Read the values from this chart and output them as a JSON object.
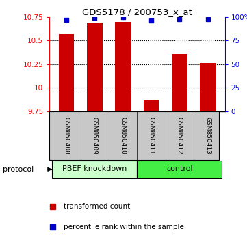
{
  "title": "GDS5178 / 200753_x_at",
  "samples": [
    "GSM850408",
    "GSM850409",
    "GSM850410",
    "GSM850411",
    "GSM850412",
    "GSM850413"
  ],
  "red_values": [
    10.57,
    10.69,
    10.7,
    9.87,
    10.36,
    10.26
  ],
  "blue_values": [
    97,
    99,
    99.5,
    96,
    98,
    98
  ],
  "ylim_left": [
    9.75,
    10.75
  ],
  "ylim_right": [
    0,
    100
  ],
  "yticks_left": [
    9.75,
    10.0,
    10.25,
    10.5,
    10.75
  ],
  "yticks_right": [
    0,
    25,
    50,
    75,
    100
  ],
  "ytick_labels_left": [
    "9.75",
    "10",
    "10.25",
    "10.5",
    "10.75"
  ],
  "ytick_labels_right": [
    "0",
    "25",
    "50",
    "75",
    "100%"
  ],
  "gridlines": [
    10.0,
    10.25,
    10.5
  ],
  "groups": [
    {
      "label": "PBEF knockdown",
      "start": 0,
      "end": 2,
      "color": "#ccffcc"
    },
    {
      "label": "control",
      "start": 3,
      "end": 5,
      "color": "#44ee44"
    }
  ],
  "bar_color": "#cc0000",
  "dot_color": "#0000cc",
  "bar_width": 0.55,
  "protocol_label": "protocol",
  "legend_red": "transformed count",
  "legend_blue": "percentile rank within the sample",
  "sample_bg": "#c8c8c8"
}
